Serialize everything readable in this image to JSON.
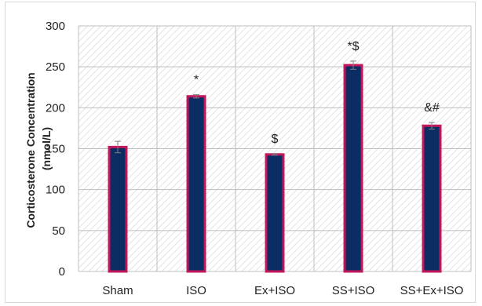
{
  "chart_data": {
    "type": "bar",
    "title": "",
    "xlabel": "",
    "ylabel": [
      "Corticosterone Concentration",
      "(nmol/L)"
    ],
    "categories": [
      "Sham",
      "ISO",
      "Ex+ISO",
      "SS+ISO",
      "SS+Ex+ISO"
    ],
    "values": [
      152,
      214,
      143,
      252,
      178
    ],
    "errors": [
      7,
      2,
      1,
      5,
      4
    ],
    "annotations": [
      "",
      "*",
      "$",
      "*$",
      "&#"
    ],
    "ylim": [
      0,
      300
    ],
    "yticks": [
      0,
      50,
      100,
      150,
      200,
      250,
      300
    ],
    "grid": true,
    "legend": "none",
    "colors": {
      "bar_fill": "#0b2d63",
      "bar_edge": "#c2185b",
      "hatch": "#d3d3d3",
      "axis": "#bfbfbf",
      "error": "#808080"
    }
  }
}
